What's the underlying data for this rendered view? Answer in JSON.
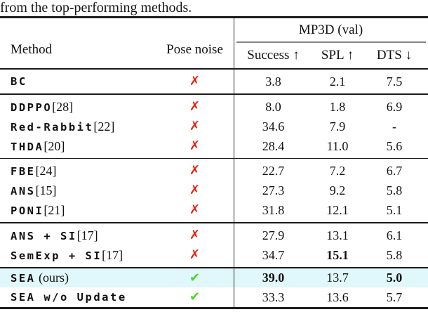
{
  "caption": "from the top-performing methods.",
  "colors": {
    "cross": "#ed1b0c",
    "check": "#4ed41c",
    "highlight": "#e0f7fb",
    "rule": "#1b1b1b"
  },
  "icons": {
    "cross": "✗",
    "check": "✔"
  },
  "table": {
    "header": {
      "method": "Method",
      "pose_noise": "Pose noise",
      "group": "MP3D (val)",
      "metrics": [
        "Success ↑",
        "SPL ↑",
        "DTS ↓"
      ]
    },
    "groups": [
      {
        "rule_above": "none",
        "rows": [
          {
            "method": "BC",
            "suffix": "",
            "pose": "cross",
            "highlight": false,
            "values": [
              {
                "t": "3.8",
                "b": false
              },
              {
                "t": "2.1",
                "b": false
              },
              {
                "t": "7.5",
                "b": false
              }
            ]
          }
        ]
      },
      {
        "rule_above": "thin",
        "rows": [
          {
            "method": "DDPPO",
            "suffix": "[28]",
            "pose": "cross",
            "highlight": false,
            "values": [
              {
                "t": "8.0",
                "b": false
              },
              {
                "t": "1.8",
                "b": false
              },
              {
                "t": "6.9",
                "b": false
              }
            ]
          },
          {
            "method": "Red-Rabbit",
            "suffix": "[22]",
            "pose": "cross",
            "highlight": false,
            "values": [
              {
                "t": "34.6",
                "b": false
              },
              {
                "t": "7.9",
                "b": false
              },
              {
                "t": "-",
                "b": false
              }
            ]
          },
          {
            "method": "THDA",
            "suffix": "[20]",
            "pose": "cross",
            "highlight": false,
            "values": [
              {
                "t": "28.4",
                "b": false
              },
              {
                "t": "11.0",
                "b": false
              },
              {
                "t": "5.6",
                "b": false
              }
            ]
          }
        ]
      },
      {
        "rule_above": "thin",
        "rows": [
          {
            "method": "FBE",
            "suffix": "[24]",
            "pose": "cross",
            "highlight": false,
            "values": [
              {
                "t": "22.7",
                "b": false
              },
              {
                "t": "7.2",
                "b": false
              },
              {
                "t": "6.7",
                "b": false
              }
            ]
          },
          {
            "method": "ANS",
            "suffix": "[15]",
            "pose": "cross",
            "highlight": false,
            "values": [
              {
                "t": "27.3",
                "b": false
              },
              {
                "t": "9.2",
                "b": false
              },
              {
                "t": "5.8",
                "b": false
              }
            ]
          },
          {
            "method": "PONI",
            "suffix": "[21]",
            "pose": "cross",
            "highlight": false,
            "values": [
              {
                "t": "31.8",
                "b": false
              },
              {
                "t": "12.1",
                "b": false
              },
              {
                "t": "5.1",
                "b": false
              }
            ]
          }
        ]
      },
      {
        "rule_above": "thin",
        "rows": [
          {
            "method": "ANS + SI",
            "suffix": "[17]",
            "pose": "cross",
            "highlight": false,
            "values": [
              {
                "t": "27.9",
                "b": false
              },
              {
                "t": "13.1",
                "b": false
              },
              {
                "t": "6.1",
                "b": false
              }
            ]
          },
          {
            "method": "SemExp + SI",
            "suffix": "[17]",
            "pose": "cross",
            "highlight": false,
            "values": [
              {
                "t": "34.7",
                "b": false
              },
              {
                "t": "15.1",
                "b": true
              },
              {
                "t": "5.8",
                "b": false
              }
            ]
          }
        ]
      },
      {
        "rule_above": "thick",
        "tight": true,
        "rows": [
          {
            "method": "SEA",
            "suffix": " (ours)",
            "pose": "check",
            "highlight": true,
            "values": [
              {
                "t": "39.0",
                "b": true
              },
              {
                "t": "13.7",
                "b": false
              },
              {
                "t": "5.0",
                "b": true
              }
            ]
          },
          {
            "method": "SEA w/o Update",
            "suffix": "",
            "pose": "check",
            "highlight": false,
            "values": [
              {
                "t": "33.3",
                "b": false
              },
              {
                "t": "13.6",
                "b": false
              },
              {
                "t": "5.7",
                "b": false
              }
            ]
          }
        ]
      }
    ]
  }
}
